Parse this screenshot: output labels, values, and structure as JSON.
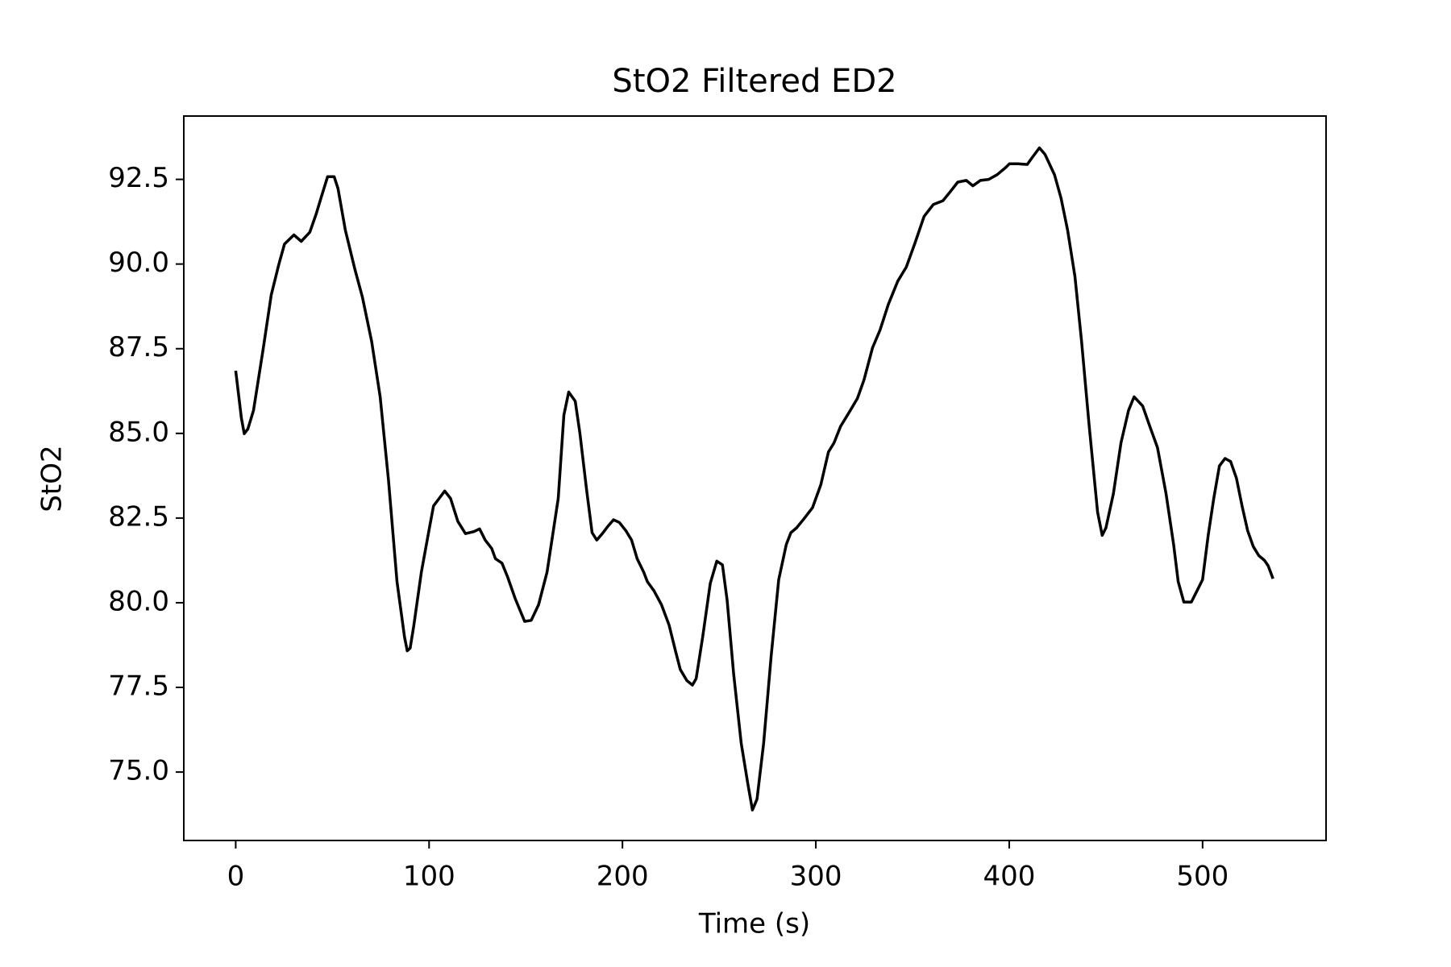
{
  "chart_data": {
    "type": "line",
    "title": "StO2 Filtered ED2",
    "xlabel": "Time (s)",
    "ylabel": "StO2",
    "x": [
      0,
      2.9,
      4.4,
      6.3,
      9.2,
      14.1,
      18.4,
      22.3,
      25.2,
      30.1,
      33.9,
      38.3,
      41.7,
      44.1,
      47.5,
      50.9,
      52.9,
      56.7,
      61.6,
      65.5,
      70.3,
      74.7,
      79.0,
      83.4,
      87.3,
      88.7,
      90.2,
      92.1,
      96.0,
      99.9,
      102.3,
      105.2,
      108.1,
      111.1,
      114.9,
      118.8,
      123.2,
      126.1,
      129.0,
      132.4,
      134.3,
      137.7,
      140.6,
      144.5,
      149.4,
      152.8,
      156.6,
      161.0,
      166.8,
      169.7,
      172.2,
      175.6,
      178.0,
      181.4,
      184.3,
      186.7,
      189.6,
      192.5,
      195.4,
      198.4,
      201.7,
      204.7,
      207.6,
      211.0,
      212.9,
      216.3,
      220.2,
      224.1,
      227.4,
      229.9,
      233.3,
      236.2,
      238.1,
      241.5,
      245.4,
      248.8,
      251.7,
      254.1,
      257.5,
      261.4,
      264.8,
      267.2,
      269.6,
      273.0,
      276.9,
      280.8,
      284.7,
      287.1,
      290.0,
      293.9,
      298.3,
      302.6,
      306.5,
      309.4,
      312.8,
      317.2,
      321.5,
      324.9,
      329.3,
      333.2,
      337.5,
      342.4,
      346.8,
      351.1,
      356.0,
      360.8,
      365.7,
      369.6,
      373.4,
      377.8,
      381.2,
      385.1,
      389.4,
      393.8,
      398.2,
      400.1,
      404.5,
      409.3,
      411.7,
      415.6,
      418.5,
      423.4,
      426.8,
      430.2,
      434.0,
      437.4,
      441.3,
      445.7,
      448.1,
      450.0,
      453.9,
      457.8,
      461.7,
      464.6,
      469.0,
      472.4,
      476.7,
      481.1,
      485.0,
      487.4,
      490.3,
      494.2,
      497.1,
      500.0,
      502.9,
      505.8,
      508.7,
      511.6,
      514.5,
      517.5,
      520.4,
      523.3,
      526.2,
      529.1,
      532.0,
      533.9,
      536.4
    ],
    "series": [
      {
        "name": "StO2",
        "color": "#000000",
        "values": [
          86.85,
          85.46,
          84.99,
          85.13,
          85.68,
          87.45,
          89.09,
          89.99,
          90.59,
          90.86,
          90.67,
          90.94,
          91.49,
          91.95,
          92.58,
          92.58,
          92.23,
          91.0,
          89.85,
          89.03,
          87.72,
          86.08,
          83.63,
          80.62,
          78.99,
          78.58,
          78.66,
          79.32,
          80.9,
          82.13,
          82.86,
          83.08,
          83.3,
          83.08,
          82.4,
          82.04,
          82.1,
          82.18,
          81.85,
          81.6,
          81.3,
          81.17,
          80.76,
          80.13,
          79.45,
          79.48,
          79.94,
          80.9,
          83.08,
          85.54,
          86.22,
          85.95,
          85.0,
          83.35,
          82.07,
          81.85,
          82.04,
          82.26,
          82.45,
          82.37,
          82.13,
          81.85,
          81.3,
          80.9,
          80.62,
          80.35,
          79.94,
          79.34,
          78.58,
          78.03,
          77.7,
          77.57,
          77.76,
          78.99,
          80.57,
          81.23,
          81.12,
          80.08,
          77.9,
          75.85,
          74.67,
          73.88,
          74.2,
          75.85,
          78.44,
          80.68,
          81.72,
          82.07,
          82.21,
          82.48,
          82.81,
          83.49,
          84.45,
          84.72,
          85.21,
          85.62,
          86.03,
          86.58,
          87.53,
          88.05,
          88.81,
          89.5,
          89.91,
          90.59,
          91.41,
          91.76,
          91.87,
          92.14,
          92.42,
          92.47,
          92.31,
          92.47,
          92.5,
          92.64,
          92.85,
          92.96,
          92.96,
          92.94,
          93.13,
          93.43,
          93.24,
          92.64,
          91.95,
          91.0,
          89.63,
          87.72,
          85.26,
          82.67,
          81.99,
          82.21,
          83.22,
          84.72,
          85.68,
          86.08,
          85.81,
          85.26,
          84.58,
          83.22,
          81.72,
          80.62,
          80.02,
          80.02,
          80.35,
          80.68,
          81.99,
          83.08,
          84.04,
          84.26,
          84.17,
          83.68,
          82.86,
          82.13,
          81.66,
          81.39,
          81.25,
          81.09,
          80.71
        ]
      }
    ],
    "xlim": [
      -26.85,
      563.85
    ],
    "ylim": [
      72.98,
      94.37
    ],
    "xticks": [
      0,
      100,
      200,
      300,
      400,
      500
    ],
    "yticks": [
      {
        "value": 75,
        "label": "75.0"
      },
      {
        "value": 77.5,
        "label": "77.5"
      },
      {
        "value": 80,
        "label": "80.0"
      },
      {
        "value": 82.5,
        "label": "82.5"
      },
      {
        "value": 85,
        "label": "85.0"
      },
      {
        "value": 87.5,
        "label": "87.5"
      },
      {
        "value": 90,
        "label": "90.0"
      },
      {
        "value": 92.5,
        "label": "92.5"
      }
    ]
  }
}
